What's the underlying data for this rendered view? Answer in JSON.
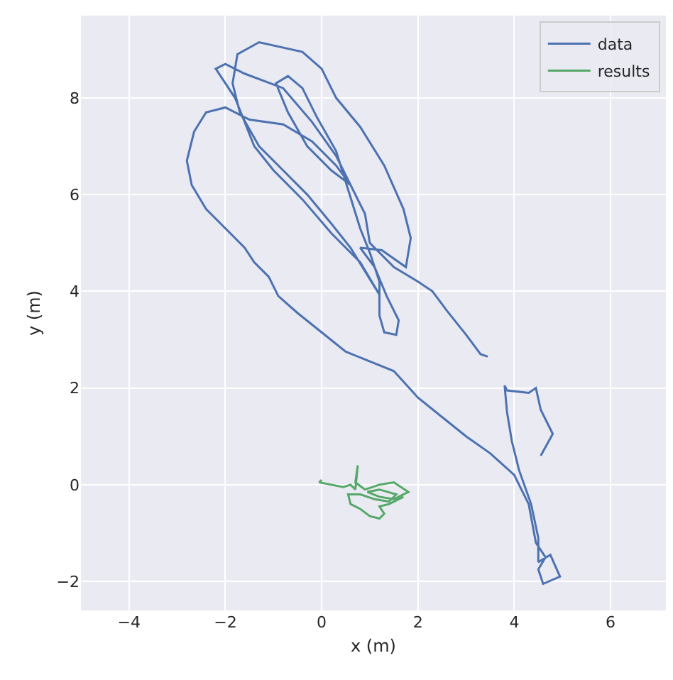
{
  "chart_data": {
    "type": "line",
    "xlabel": "x (m)",
    "ylabel": "y (m)",
    "xlim": [
      -5,
      7.15
    ],
    "ylim": [
      -2.6,
      9.7
    ],
    "xticks": [
      -4,
      -2,
      0,
      2,
      4,
      6
    ],
    "yticks": [
      -2,
      0,
      2,
      4,
      6,
      8
    ],
    "grid": true,
    "legend": "top right",
    "marker": "none",
    "line_style": "solid",
    "series": [
      {
        "name": "data",
        "color": "#4c72b0",
        "x": [
          4.55,
          4.8,
          4.55,
          4.45,
          4.3,
          3.85,
          3.8,
          3.85,
          3.95,
          4.1,
          4.35,
          4.5,
          4.5,
          4.75,
          4.95,
          4.6,
          4.5,
          4.65,
          4.45,
          4.3,
          4.0,
          3.5,
          3.0,
          2.5,
          2.0,
          1.5,
          1.0,
          0.5,
          0,
          -0.5,
          -0.9,
          -1.1,
          -1.4,
          -1.6,
          -2.0,
          -2.4,
          -2.7,
          -2.8,
          -2.65,
          -2.4,
          -2.0,
          -1.5,
          -0.8,
          -0.2,
          0.3,
          0.6,
          0.2,
          -0.3,
          -0.7,
          -0.95,
          -0.7,
          -0.4,
          -0.1,
          0.3,
          0.55,
          0.8,
          1.0,
          1.2,
          1.2,
          1.3,
          1.55,
          1.6,
          1.35,
          1.1,
          0.8,
          1.25,
          1.75,
          1.85,
          1.7,
          1.3,
          0.8,
          0.3,
          0,
          -0.4,
          -1.3,
          -1.75,
          -1.85,
          -1.7,
          -1.3,
          -0.8,
          -0.3,
          0.2,
          0.6,
          1.2,
          0.8,
          0.2,
          -0.4,
          -1.0,
          -1.4,
          -1.8,
          -2.2,
          -2.0,
          -1.6,
          -0.8,
          -0.2,
          0.3,
          0.6,
          0.9,
          1.0,
          1.5,
          2.0,
          2.3,
          2.6,
          3.0,
          3.3,
          3.45
        ],
        "values": [
          0.6,
          1.05,
          1.55,
          2.0,
          1.9,
          1.95,
          2.05,
          1.5,
          0.9,
          0.3,
          -0.4,
          -1.1,
          -1.6,
          -1.45,
          -1.9,
          -2.05,
          -1.75,
          -1.5,
          -1.2,
          -0.4,
          0.2,
          0.65,
          1.0,
          1.4,
          1.8,
          2.35,
          2.55,
          2.75,
          3.15,
          3.55,
          3.9,
          4.3,
          4.6,
          4.9,
          5.3,
          5.7,
          6.2,
          6.7,
          7.3,
          7.7,
          7.8,
          7.55,
          7.45,
          7.1,
          6.6,
          6.2,
          6.5,
          7.0,
          7.7,
          8.3,
          8.45,
          8.2,
          7.6,
          6.9,
          6.1,
          5.3,
          4.8,
          4.2,
          3.5,
          3.15,
          3.1,
          3.4,
          3.9,
          4.5,
          4.9,
          4.85,
          4.5,
          5.1,
          5.7,
          6.6,
          7.4,
          8.0,
          8.6,
          8.95,
          9.15,
          8.9,
          8.3,
          7.7,
          7.0,
          6.5,
          6.0,
          5.4,
          4.9,
          3.93,
          4.6,
          5.2,
          5.9,
          6.5,
          7.0,
          8.0,
          8.6,
          8.7,
          8.5,
          8.2,
          7.5,
          6.8,
          6.2,
          5.6,
          5.0,
          4.5,
          4.2,
          4.0,
          3.6,
          3.1,
          2.7,
          2.65
        ]
      },
      {
        "name": "results",
        "color": "#55a868",
        "x": [
          0,
          -0.05,
          0.2,
          0.45,
          0.6,
          0.7,
          0.75,
          0.7,
          0.9,
          1.2,
          1.5,
          1.8,
          1.5,
          1.2,
          0.95,
          1.2,
          1.55,
          1.4,
          1.1,
          0.8,
          0.55,
          0.6,
          0.8,
          1.0,
          1.2,
          1.3,
          1.2,
          1.4,
          1.7
        ],
        "values": [
          0.1,
          0.05,
          0,
          -0.05,
          0,
          -0.1,
          0.4,
          0.05,
          -0.1,
          0.0,
          0.05,
          -0.15,
          -0.3,
          -0.25,
          -0.15,
          -0.1,
          -0.2,
          -0.35,
          -0.3,
          -0.2,
          -0.2,
          -0.4,
          -0.5,
          -0.65,
          -0.7,
          -0.6,
          -0.45,
          -0.4,
          -0.25
        ]
      }
    ]
  }
}
